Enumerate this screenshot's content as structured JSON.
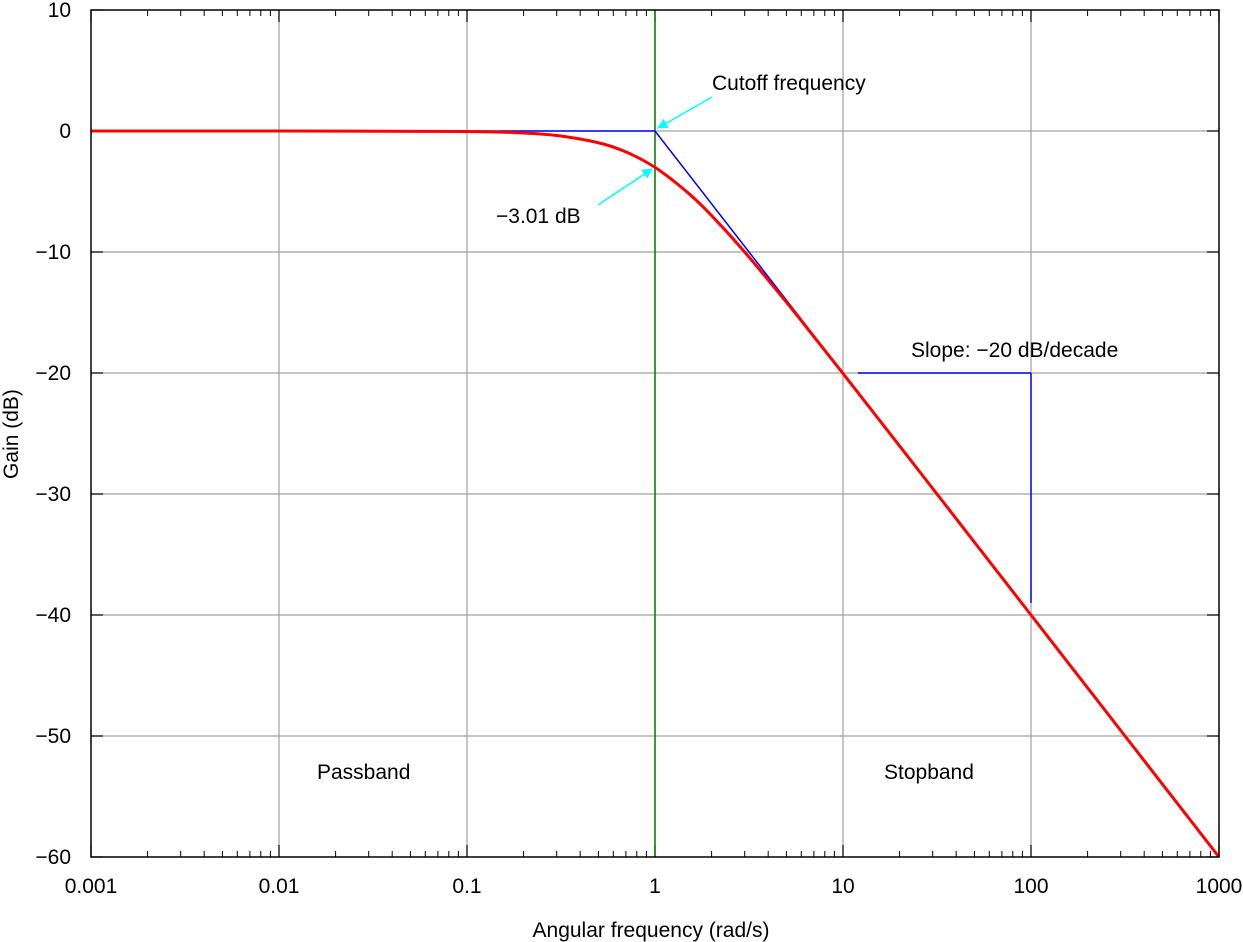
{
  "chart_data": {
    "type": "line",
    "x_scale": "log",
    "xlabel": "Angular frequency (rad/s)",
    "ylabel": "Gain (dB)",
    "xlim": [
      0.001,
      1000
    ],
    "ylim": [
      -60,
      10
    ],
    "grid": true,
    "x_ticks": [
      0.001,
      0.01,
      0.1,
      1,
      10,
      100,
      1000
    ],
    "x_tick_labels": [
      "0.001",
      "0.01",
      "0.1",
      "1",
      "10",
      "100",
      "1000"
    ],
    "y_ticks": [
      -60,
      -50,
      -40,
      -30,
      -20,
      -10,
      0,
      10
    ],
    "y_tick_labels": [
      "−60",
      "−50",
      "−40",
      "−30",
      "−20",
      "−10",
      "0",
      "10"
    ],
    "series": [
      {
        "kind": "magnitude response",
        "color": "#ff0000",
        "x": [
          0.001,
          0.01,
          0.1,
          0.2,
          0.3,
          0.5,
          0.7,
          1,
          1.5,
          2,
          3,
          5,
          7,
          10,
          20,
          50,
          100,
          200,
          500,
          1000
        ],
        "y": [
          0,
          0,
          -0.04,
          -0.17,
          -0.37,
          -0.97,
          -1.73,
          -3.01,
          -5.12,
          -6.99,
          -10.0,
          -14.15,
          -17.0,
          -20.04,
          -26.03,
          -33.98,
          -40.0,
          -46.02,
          -53.98,
          -60.0
        ]
      },
      {
        "kind": "asymptotic approximation",
        "color": "#0000ff",
        "x": [
          0.1,
          1,
          10
        ],
        "y": [
          0,
          0,
          -20
        ]
      }
    ],
    "cutoff_line": {
      "x": 1,
      "color": "#008000"
    },
    "slope_guide": {
      "color": "#0000ff",
      "horizontal": {
        "x": [
          12,
          100
        ],
        "y": -20
      },
      "vertical": {
        "x": 100,
        "y": [
          -20,
          -39
        ]
      }
    },
    "annotations": {
      "cutoff": {
        "text": "Cutoff frequency",
        "arrow_color": "#00ffff"
      },
      "minus3db": {
        "text": "−3.01 dB",
        "arrow_color": "#00ffff"
      },
      "slope": {
        "text": "Slope: −20 dB/decade"
      },
      "passband": {
        "text": "Passband"
      },
      "stopband": {
        "text": "Stopband"
      }
    }
  }
}
